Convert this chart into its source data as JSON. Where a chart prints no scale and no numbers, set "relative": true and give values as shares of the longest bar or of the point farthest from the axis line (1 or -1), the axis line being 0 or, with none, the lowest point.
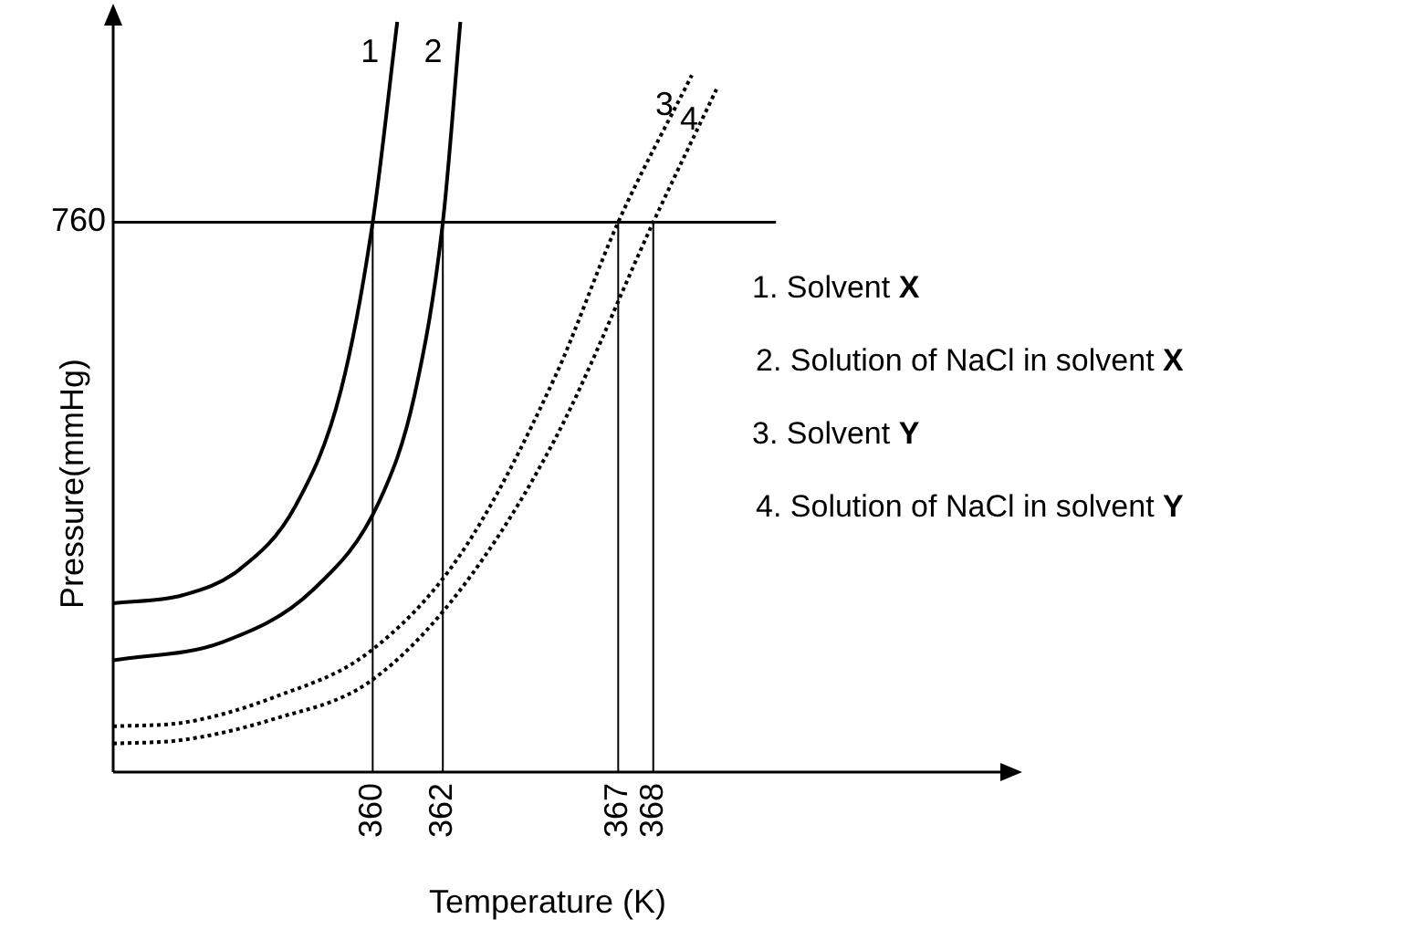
{
  "chart_data": {
    "type": "line",
    "relative": true,
    "xlabel": "Temperature (K)",
    "ylabel": "Pressure(mmHg)",
    "xlim": [
      352.6,
      378
    ],
    "xticks": [
      360,
      362,
      367,
      368
    ],
    "tick_labels": "x",
    "marker": "none",
    "series": [
      {
        "name": "1",
        "color": "#000000",
        "line_style": "solid",
        "x": [
          352.6,
          354.6,
          356.2,
          357.8,
          359.1,
          360,
          360.7
        ],
        "values": [
          0.225,
          0.236,
          0.27,
          0.355,
          0.51,
          0.733,
          1
        ]
      },
      {
        "name": "2",
        "color": "#000000",
        "line_style": "solid",
        "x": [
          352.6,
          355.7,
          358.3,
          360.2,
          361.2,
          362,
          362.5
        ],
        "values": [
          0.149,
          0.173,
          0.243,
          0.362,
          0.504,
          0.733,
          1
        ]
      },
      {
        "name": "3",
        "color": "#000000",
        "line_style": "dotted",
        "x": [
          352.6,
          354.6,
          357.2,
          359.9,
          362.5,
          365.2,
          367,
          369.1
        ],
        "values": [
          0.061,
          0.066,
          0.1,
          0.16,
          0.29,
          0.527,
          0.733,
          0.929
        ]
      },
      {
        "name": "4",
        "color": "#000000",
        "line_style": "dotted",
        "x": [
          352.6,
          354.6,
          357.2,
          359.9,
          362.5,
          365.2,
          368,
          369.8
        ],
        "values": [
          0.038,
          0.043,
          0.071,
          0.12,
          0.243,
          0.444,
          0.733,
          0.91
        ]
      }
    ],
    "ref_lines": [
      {
        "axis": "y",
        "value": 0.733
      },
      {
        "axis": "x",
        "value": 360
      },
      {
        "axis": "x",
        "value": 362
      },
      {
        "axis": "x",
        "value": 367
      },
      {
        "axis": "x",
        "value": 368
      }
    ],
    "annotations": [
      "760",
      "1. Solvent X",
      "2. Solution of NaCl in solvent X",
      "3. Solvent Y",
      "4. Solution of NaCl in solvent Y"
    ]
  }
}
